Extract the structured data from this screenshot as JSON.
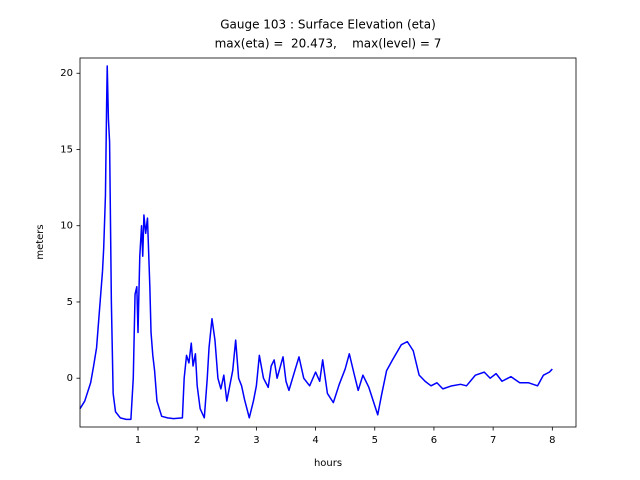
{
  "chart_data": {
    "type": "line",
    "title": [
      "Gauge 103 : Surface Elevation (eta)",
      "max(eta) =  20.473,    max(level) = 7"
    ],
    "xlabel": "hours",
    "ylabel": "meters",
    "color": "#0000ff",
    "xlim": [
      0.02,
      8.4
    ],
    "ylim": [
      -3.2,
      21.0
    ],
    "xticks": [
      1,
      2,
      3,
      4,
      5,
      6,
      7,
      8
    ],
    "yticks": [
      0,
      5,
      10,
      15,
      20
    ],
    "grid": false,
    "x": [
      0.02,
      0.1,
      0.2,
      0.25,
      0.3,
      0.35,
      0.4,
      0.42,
      0.45,
      0.47,
      0.48,
      0.5,
      0.52,
      0.55,
      0.58,
      0.62,
      0.7,
      0.8,
      0.88,
      0.92,
      0.95,
      0.98,
      1.0,
      1.03,
      1.06,
      1.08,
      1.1,
      1.13,
      1.16,
      1.2,
      1.22,
      1.25,
      1.28,
      1.32,
      1.4,
      1.5,
      1.6,
      1.75,
      1.78,
      1.82,
      1.86,
      1.9,
      1.93,
      1.97,
      2.0,
      2.05,
      2.12,
      2.17,
      2.2,
      2.25,
      2.3,
      2.35,
      2.4,
      2.45,
      2.5,
      2.55,
      2.6,
      2.65,
      2.7,
      2.75,
      2.8,
      2.88,
      2.95,
      3.0,
      3.05,
      3.12,
      3.2,
      3.25,
      3.3,
      3.35,
      3.45,
      3.5,
      3.55,
      3.65,
      3.72,
      3.8,
      3.9,
      4.0,
      4.07,
      4.12,
      4.2,
      4.3,
      4.4,
      4.5,
      4.57,
      4.65,
      4.72,
      4.8,
      4.9,
      5.0,
      5.05,
      5.12,
      5.2,
      5.3,
      5.45,
      5.55,
      5.65,
      5.75,
      5.85,
      5.95,
      6.05,
      6.15,
      6.3,
      6.45,
      6.55,
      6.7,
      6.85,
      6.95,
      7.05,
      7.15,
      7.3,
      7.45,
      7.6,
      7.75,
      7.85,
      7.95,
      8.0
    ],
    "values": [
      -2.0,
      -1.5,
      -0.3,
      0.8,
      2,
      4.5,
      7,
      8.5,
      12,
      18,
      20.473,
      17,
      15.5,
      5,
      -1,
      -2.2,
      -2.6,
      -2.7,
      -2.7,
      0,
      5.5,
      6,
      3,
      8,
      10,
      8,
      10.7,
      9.5,
      10.5,
      6,
      3,
      1.5,
      0.5,
      -1.5,
      -2.5,
      -2.6,
      -2.65,
      -2.6,
      0,
      1.5,
      1,
      2.3,
      0.8,
      1.6,
      -0.5,
      -2,
      -2.6,
      0,
      2,
      3.9,
      2.5,
      0,
      -0.7,
      0.2,
      -1.5,
      -0.5,
      0.5,
      2.5,
      0,
      -0.5,
      -1.4,
      -2.6,
      -1.5,
      -0.5,
      1.5,
      0,
      -0.6,
      0.8,
      1.2,
      0,
      1.4,
      -0.2,
      -0.8,
      0.5,
      1.4,
      0,
      -0.5,
      0.4,
      -0.2,
      1.2,
      -1,
      -1.6,
      -0.4,
      0.6,
      1.6,
      0.3,
      -0.8,
      0.2,
      -0.6,
      -1.8,
      -2.4,
      -1,
      0.5,
      1.2,
      2.2,
      2.4,
      1.8,
      0.2,
      -0.2,
      -0.5,
      -0.3,
      -0.7,
      -0.5,
      -0.4,
      -0.5,
      0.2,
      0.4,
      0,
      0.3,
      -0.2,
      0.1,
      -0.3,
      -0.3,
      -0.5,
      0.2,
      0.4,
      0.6
    ]
  }
}
